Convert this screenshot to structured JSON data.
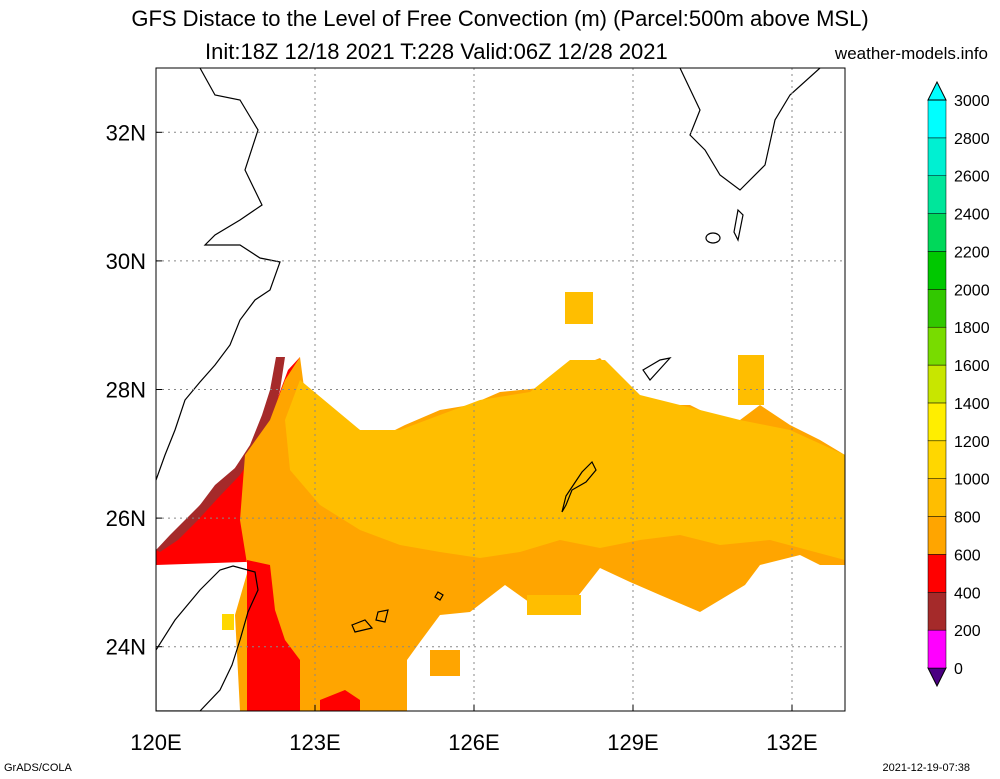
{
  "title_line1": "GFS Distace to the Level of Free Convection (m) (Parcel:500m above MSL)",
  "title_line2": "Init:18Z 12/18 2021 T:228 Valid:06Z 12/28 2021",
  "site": "weather-models.info",
  "footer_left": "GrADS/COLA",
  "footer_right": "2021-12-19-07:38",
  "chart_data": {
    "type": "heatmap",
    "title": "GFS Distace to the Level of Free Convection (m) (Parcel:500m above MSL)",
    "subtitle": "Init:18Z 12/18 2021 T:228 Valid:06Z 12/28 2021",
    "x_ticks": [
      "120E",
      "123E",
      "126E",
      "129E",
      "132E"
    ],
    "x_tick_values": [
      120,
      123,
      126,
      129,
      132
    ],
    "y_ticks": [
      "24N",
      "26N",
      "28N",
      "30N",
      "32N"
    ],
    "y_tick_values": [
      24,
      26,
      28,
      30,
      32
    ],
    "xlim": [
      120,
      133
    ],
    "ylim": [
      23,
      33
    ],
    "grid": true,
    "colorbar": {
      "levels": [
        "0",
        "200",
        "400",
        "600",
        "800",
        "1000",
        "1200",
        "1400",
        "1600",
        "1800",
        "2000",
        "2200",
        "2400",
        "2600",
        "2800",
        "3000"
      ],
      "colors": [
        "#4b0082",
        "#ff00ff",
        "#a52a2a",
        "#ff0000",
        "#ffa500",
        "#ffbe00",
        "#ffd700",
        "#ffee00",
        "#c8e600",
        "#78dc00",
        "#32c800",
        "#00c800",
        "#00d85a",
        "#00e69b",
        "#00f0d2",
        "#00ffff"
      ]
    },
    "regions": [
      {
        "value_range": "600-800",
        "lon": [
          122.4,
          133
        ],
        "lat": [
          24.2,
          28.4
        ],
        "note": "orange band"
      },
      {
        "value_range": "800-1000",
        "lon": [
          124,
          133
        ],
        "lat": [
          25.5,
          28.6
        ],
        "note": "yellow-orange band"
      },
      {
        "value_range": "400-600",
        "lon": [
          120,
          122.4
        ],
        "lat": [
          25.2,
          28.5
        ],
        "note": "red/brown fringe"
      }
    ]
  }
}
